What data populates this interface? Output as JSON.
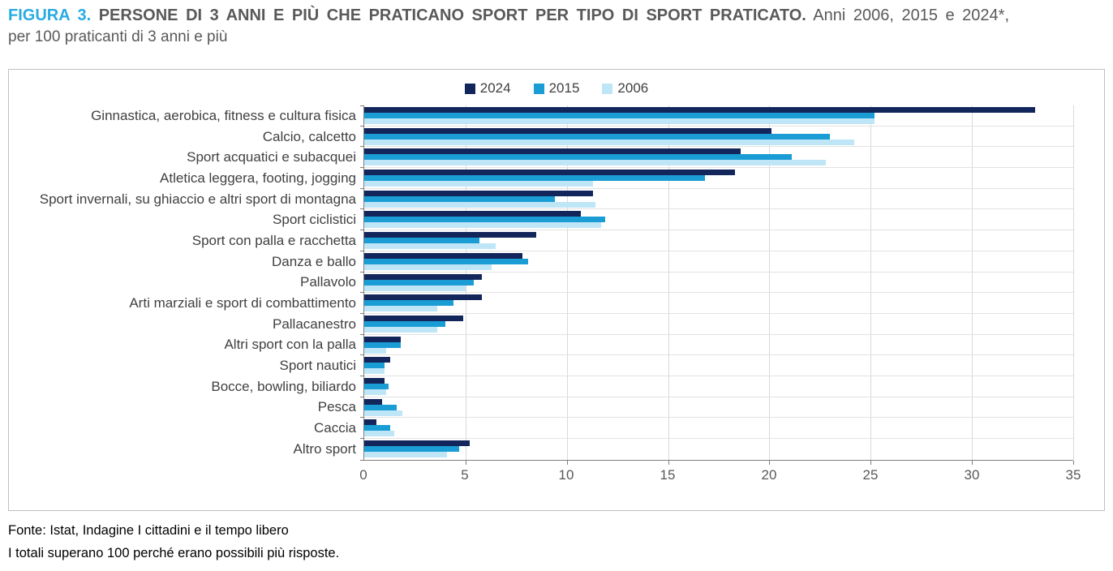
{
  "header": {
    "figure_label": "FIGURA 3.",
    "title": "PERSONE DI 3 ANNI E PIÙ CHE PRATICANO SPORT PER TIPO DI SPORT PRATICATO.",
    "subtitle_line1": "Anni 2006, 2015 e 2024*,",
    "subtitle_line2": "per 100 praticanti di 3 anni e più",
    "accent_color": "#29abe2"
  },
  "chart_data": {
    "type": "bar",
    "orientation": "horizontal",
    "title": "",
    "xlabel": "",
    "ylabel": "",
    "xlim": [
      0,
      35
    ],
    "xticks": [
      0,
      5,
      10,
      15,
      20,
      25,
      30,
      35
    ],
    "grid": "vertical",
    "legend_position": "top-center",
    "categories": [
      "Ginnastica, aerobica, fitness e cultura fisica",
      "Calcio, calcetto",
      "Sport acquatici e subacquei",
      "Atletica leggera, footing, jogging",
      "Sport invernali, su ghiaccio e altri sport di montagna",
      "Sport ciclistici",
      "Sport con palla e racchetta",
      "Danza e ballo",
      "Pallavolo",
      "Arti marziali e sport di combattimento",
      "Pallacanestro",
      "Altri sport con la palla",
      "Sport nautici",
      "Bocce, bowling, biliardo",
      "Pesca",
      "Caccia",
      "Altro sport"
    ],
    "series": [
      {
        "name": "2024",
        "color": "#13265c",
        "values": [
          33.1,
          20.1,
          18.6,
          18.3,
          11.3,
          10.7,
          8.5,
          7.8,
          5.8,
          5.8,
          4.9,
          1.8,
          1.3,
          1.0,
          0.9,
          0.6,
          5.2
        ]
      },
      {
        "name": "2015",
        "color": "#1a9cd4",
        "values": [
          25.2,
          23.0,
          21.1,
          16.8,
          9.4,
          11.9,
          5.7,
          8.1,
          5.4,
          4.4,
          4.0,
          1.8,
          1.0,
          1.2,
          1.6,
          1.3,
          4.7
        ]
      },
      {
        "name": "2006",
        "color": "#bfe6f7",
        "values": [
          25.2,
          24.2,
          22.8,
          11.3,
          11.4,
          11.7,
          6.5,
          6.3,
          5.0,
          3.6,
          3.6,
          1.1,
          1.0,
          1.1,
          1.9,
          1.5,
          4.1
        ]
      }
    ]
  },
  "footer": {
    "source": "Fonte: Istat, Indagine I cittadini e il tempo libero",
    "note": "I totali superano 100 perché erano possibili più risposte."
  }
}
